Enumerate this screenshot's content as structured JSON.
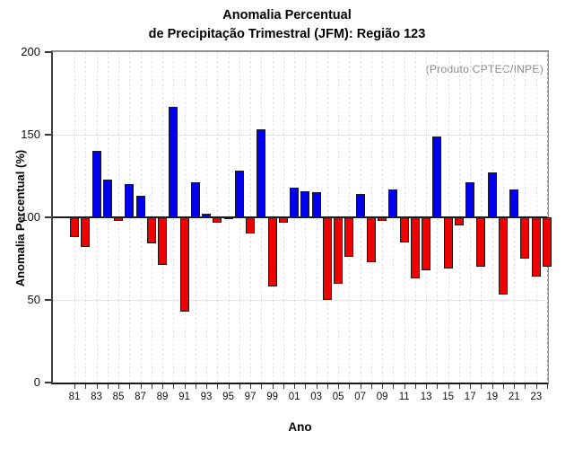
{
  "header": {
    "title_line1": "Anomalia Percentual",
    "title_line2": "de Precipitação Trimestral (JFM): Região 123"
  },
  "annotation": {
    "text": "(Produto:CPTEC/INPE)"
  },
  "axes": {
    "y_label": "Anomalia Percentual (%)",
    "x_label": "Ano"
  },
  "chart_data": {
    "type": "bar",
    "title": "Anomalia Percentual de Precipitação Trimestral (JFM): Região 123",
    "xlabel": "Ano",
    "ylabel": "Anomalia Percentual (%)",
    "ylim": [
      0,
      200
    ],
    "yticks": [
      0,
      50,
      100,
      150,
      200
    ],
    "baseline": 100,
    "grid": {
      "vertical_dashed_every_year": true,
      "horizontal_dotted_at": [
        50,
        150
      ]
    },
    "legend_position": "none",
    "annotation": "(Produto:CPTEC/INPE)",
    "bar_colors": {
      "above_baseline": "#0000ee",
      "below_baseline": "#ee0000",
      "border": "#1a1a1a"
    },
    "x": [
      1981,
      1982,
      1983,
      1984,
      1985,
      1986,
      1987,
      1988,
      1989,
      1990,
      1991,
      1992,
      1993,
      1994,
      1995,
      1996,
      1997,
      1998,
      1999,
      2000,
      2001,
      2002,
      2003,
      2004,
      2005,
      2006,
      2007,
      2008,
      2009,
      2010,
      2011,
      2012,
      2013,
      2014,
      2015,
      2016,
      2017,
      2018,
      2019,
      2020,
      2021,
      2022,
      2023,
      2024
    ],
    "x_tick_labels": [
      "81",
      "83",
      "85",
      "87",
      "89",
      "91",
      "93",
      "95",
      "97",
      "99",
      "01",
      "03",
      "05",
      "07",
      "09",
      "11",
      "13",
      "15",
      "17",
      "19",
      "21",
      "23"
    ],
    "values": [
      88,
      82,
      140,
      123,
      98,
      120,
      113,
      84,
      71,
      167,
      43,
      121,
      102,
      97,
      99,
      128,
      90,
      153,
      58,
      97,
      118,
      116,
      115,
      50,
      60,
      76,
      114,
      73,
      98,
      117,
      85,
      63,
      68,
      149,
      69,
      95,
      121,
      70,
      127,
      53,
      117,
      75,
      64,
      70
    ]
  }
}
